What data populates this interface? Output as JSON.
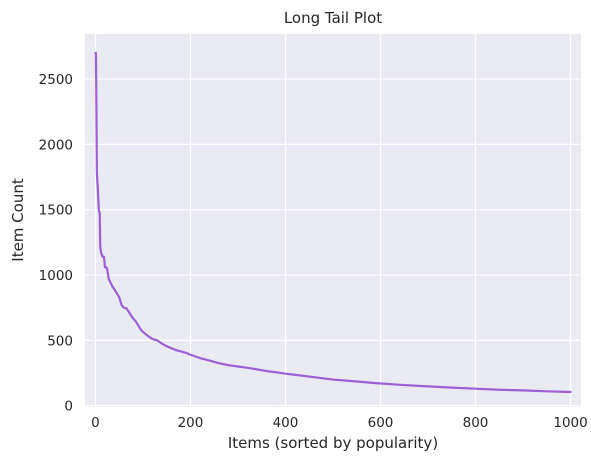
{
  "chart_data": {
    "type": "line",
    "title": "Long Tail Plot",
    "xlabel": "Items (sorted by popularity)",
    "ylabel": "Item Count",
    "xlim": [
      -22,
      1022
    ],
    "ylim": [
      -10,
      2845
    ],
    "x_ticks": [
      0,
      200,
      400,
      600,
      800,
      1000
    ],
    "y_ticks": [
      0,
      500,
      1000,
      1500,
      2000,
      2500
    ],
    "grid": true,
    "colors": {
      "background": "#eaeaf2",
      "grid": "#ffffff",
      "line": "#9b5fd6"
    },
    "series": [
      {
        "x": [
          0,
          1,
          2,
          3,
          5,
          7,
          9,
          10,
          12,
          15,
          18,
          20,
          23,
          25,
          28,
          32,
          36,
          40,
          45,
          50,
          55,
          60,
          65,
          70,
          75,
          80,
          85,
          90,
          95,
          100,
          110,
          120,
          130,
          140,
          150,
          160,
          170,
          180,
          190,
          200,
          220,
          240,
          260,
          280,
          300,
          320,
          340,
          360,
          380,
          400,
          430,
          460,
          500,
          550,
          600,
          650,
          700,
          750,
          800,
          850,
          900,
          950,
          1000
        ],
        "y": [
          2700,
          2700,
          2300,
          1780,
          1660,
          1500,
          1470,
          1220,
          1170,
          1140,
          1140,
          1060,
          1060,
          1040,
          970,
          940,
          910,
          890,
          860,
          830,
          770,
          750,
          745,
          720,
          690,
          665,
          645,
          615,
          585,
          565,
          535,
          510,
          500,
          475,
          455,
          440,
          425,
          415,
          405,
          390,
          365,
          345,
          325,
          310,
          300,
          290,
          278,
          265,
          256,
          245,
          232,
          218,
          200,
          185,
          170,
          158,
          148,
          138,
          130,
          122,
          117,
          110,
          105
        ]
      }
    ]
  }
}
